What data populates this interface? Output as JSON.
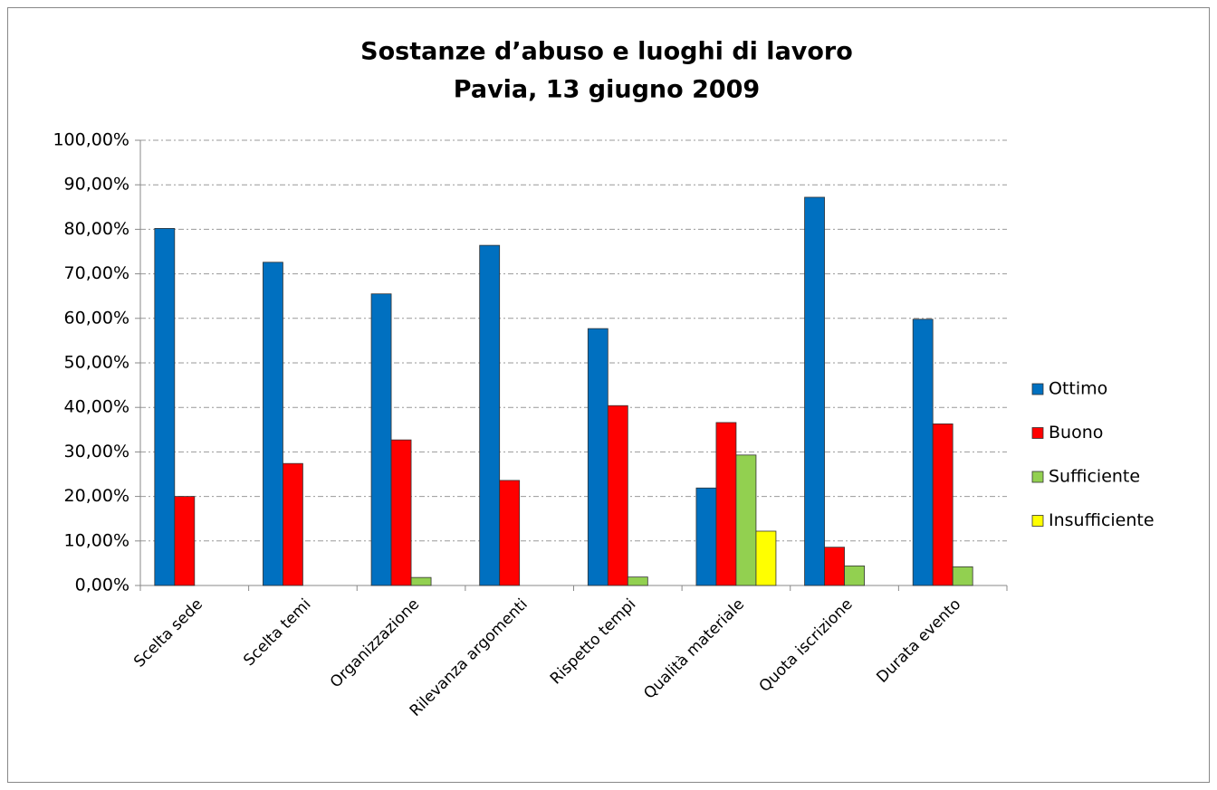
{
  "chart_data": {
    "type": "bar",
    "title": "Sostanze d’abuso e luoghi di lavoro",
    "subtitle": "Pavia, 13 giugno 2009",
    "categories": [
      "Scelta sede",
      "Scelta temi",
      "Organizzazione",
      "Rilevanza argomenti",
      "Rispetto tempi",
      "Qualità materiale",
      "Quota iscrizione",
      "Durata evento"
    ],
    "series": [
      {
        "name": "Ottimo",
        "color": "#0070c0",
        "values": [
          80.2,
          72.6,
          65.5,
          76.4,
          57.7,
          21.9,
          87.2,
          59.8
        ]
      },
      {
        "name": "Buono",
        "color": "#ff0000",
        "values": [
          20.0,
          27.4,
          32.7,
          23.6,
          40.4,
          36.6,
          8.6,
          36.3
        ]
      },
      {
        "name": "Sufficiente",
        "color": "#92d050",
        "values": [
          0,
          0,
          1.8,
          0,
          1.9,
          29.3,
          4.4,
          4.2
        ]
      },
      {
        "name": "Insufficiente",
        "color": "#ffff00",
        "values": [
          0,
          0,
          0,
          0,
          0,
          12.2,
          0,
          0
        ]
      }
    ],
    "ylim": [
      0,
      100
    ],
    "yticks": [
      {
        "value": 0,
        "label": "0,00%"
      },
      {
        "value": 10,
        "label": "10,00%"
      },
      {
        "value": 20,
        "label": "20,00%"
      },
      {
        "value": 30,
        "label": "30,00%"
      },
      {
        "value": 40,
        "label": "40,00%"
      },
      {
        "value": 50,
        "label": "50,00%"
      },
      {
        "value": 60,
        "label": "60,00%"
      },
      {
        "value": 70,
        "label": "70,00%"
      },
      {
        "value": 80,
        "label": "80,00%"
      },
      {
        "value": 90,
        "label": "90,00%"
      },
      {
        "value": 100,
        "label": "100,00%"
      }
    ],
    "grid": true,
    "legend": "right"
  }
}
